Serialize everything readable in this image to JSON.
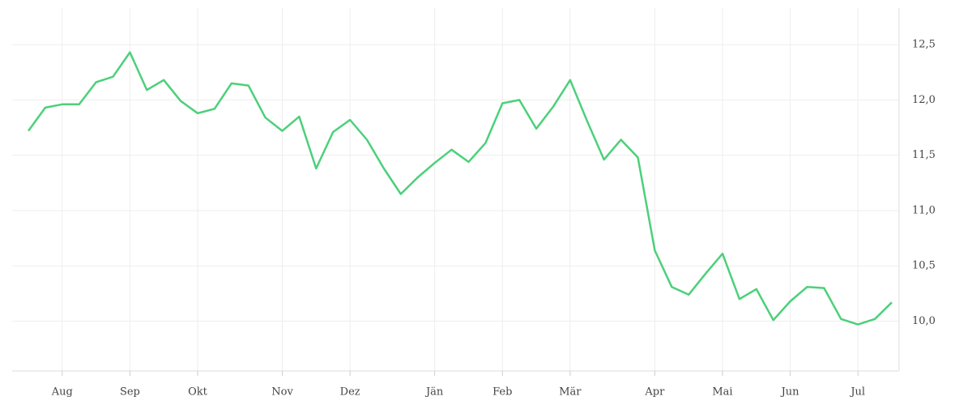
{
  "chart_data": {
    "type": "line",
    "categories": [
      null,
      null,
      "Aug",
      null,
      null,
      null,
      "Sep",
      null,
      null,
      null,
      "Okt",
      null,
      null,
      null,
      null,
      "Nov",
      null,
      null,
      null,
      "Dez",
      null,
      null,
      null,
      null,
      "Jän",
      null,
      null,
      null,
      "Feb",
      null,
      null,
      null,
      "Mär",
      null,
      null,
      null,
      null,
      "Apr",
      null,
      null,
      null,
      "Mai",
      null,
      null,
      null,
      "Jun",
      null,
      null,
      null,
      "Jul",
      null,
      null
    ],
    "series": [
      {
        "color": "#4cd07a",
        "values": [
          11.72,
          11.93,
          11.96,
          11.96,
          12.16,
          12.21,
          12.43,
          12.09,
          12.18,
          11.99,
          11.88,
          11.92,
          12.15,
          12.13,
          11.84,
          11.72,
          11.85,
          11.38,
          11.71,
          11.82,
          11.64,
          11.38,
          11.15,
          11.3,
          11.43,
          11.55,
          11.44,
          11.61,
          11.97,
          12.0,
          11.74,
          11.94,
          12.18,
          11.81,
          11.46,
          11.64,
          11.48,
          10.64,
          10.31,
          10.24,
          10.43,
          10.61,
          10.2,
          10.29,
          10.01,
          10.18,
          10.31,
          10.3,
          10.02,
          9.97,
          10.02,
          10.17
        ]
      }
    ],
    "ylim": [
      9.55,
      12.83
    ],
    "yticks": [
      {
        "value": 10,
        "label": "10,0"
      },
      {
        "value": 10.5,
        "label": "10,5"
      },
      {
        "value": 11,
        "label": "11,0"
      },
      {
        "value": 11.5,
        "label": "11,5"
      },
      {
        "value": 12,
        "label": "12,0"
      },
      {
        "value": 12.5,
        "label": "12,5"
      }
    ],
    "grid": true
  }
}
